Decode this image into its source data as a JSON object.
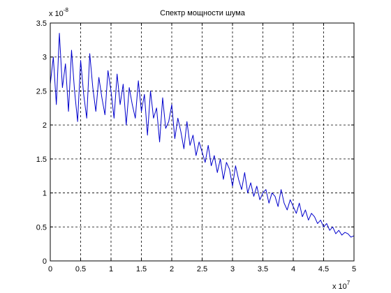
{
  "chart_data": {
    "type": "line",
    "title": "Спектр мощности шума",
    "xlabel": "",
    "ylabel": "",
    "x_multiplier": "x 10",
    "x_exponent": "7",
    "y_multiplier": "x 10",
    "y_exponent": "-8",
    "xlim": [
      0,
      5
    ],
    "ylim": [
      0,
      3.5
    ],
    "x_ticks": [
      "0",
      "0.5",
      "1",
      "1.5",
      "2",
      "2.5",
      "3",
      "3.5",
      "4",
      "4.5",
      "5"
    ],
    "y_ticks": [
      "0",
      "0.5",
      "1",
      "1.5",
      "2",
      "2.5",
      "3",
      "3.5"
    ],
    "grid": true,
    "line_color": "#0000cc",
    "series": [
      {
        "x": [
          0,
          0.05,
          0.1,
          0.15,
          0.2,
          0.25,
          0.3,
          0.35,
          0.4,
          0.45,
          0.5,
          0.55,
          0.6,
          0.65,
          0.7,
          0.75,
          0.8,
          0.85,
          0.9,
          0.95,
          1.0,
          1.05,
          1.1,
          1.15,
          1.2,
          1.25,
          1.3,
          1.35,
          1.4,
          1.45,
          1.5,
          1.55,
          1.6,
          1.65,
          1.7,
          1.75,
          1.8,
          1.85,
          1.9,
          1.95,
          2.0,
          2.05,
          2.1,
          2.15,
          2.2,
          2.25,
          2.3,
          2.35,
          2.4,
          2.45,
          2.5,
          2.55,
          2.6,
          2.65,
          2.7,
          2.75,
          2.8,
          2.85,
          2.9,
          2.95,
          3.0,
          3.05,
          3.1,
          3.15,
          3.2,
          3.25,
          3.3,
          3.35,
          3.4,
          3.45,
          3.5,
          3.55,
          3.6,
          3.65,
          3.7,
          3.75,
          3.8,
          3.85,
          3.9,
          3.95,
          4.0,
          4.05,
          4.1,
          4.15,
          4.2,
          4.25,
          4.3,
          4.35,
          4.4,
          4.45,
          4.5,
          4.55,
          4.6,
          4.65,
          4.7,
          4.75,
          4.8,
          4.85,
          4.9,
          4.95,
          5.0
        ],
        "y": [
          2.6,
          3.0,
          2.3,
          3.35,
          2.55,
          2.9,
          2.2,
          3.1,
          2.5,
          2.05,
          2.95,
          2.45,
          2.1,
          3.05,
          2.55,
          2.2,
          2.7,
          2.4,
          2.15,
          2.8,
          2.5,
          2.1,
          2.75,
          2.3,
          2.6,
          2.0,
          2.55,
          2.3,
          2.1,
          2.65,
          2.2,
          2.45,
          1.85,
          2.5,
          2.1,
          2.25,
          1.75,
          2.4,
          1.95,
          2.05,
          2.3,
          1.8,
          2.1,
          1.9,
          1.65,
          2.05,
          1.7,
          1.85,
          1.55,
          1.75,
          1.6,
          1.45,
          1.7,
          1.4,
          1.55,
          1.3,
          1.5,
          1.2,
          1.45,
          1.35,
          1.1,
          1.4,
          1.2,
          1.05,
          1.3,
          1.0,
          1.15,
          0.95,
          1.1,
          0.9,
          1.0,
          1.05,
          0.85,
          1.0,
          0.95,
          0.8,
          1.05,
          0.85,
          0.75,
          0.9,
          0.8,
          0.7,
          0.85,
          0.65,
          0.75,
          0.6,
          0.7,
          0.65,
          0.55,
          0.6,
          0.5,
          0.55,
          0.45,
          0.5,
          0.4,
          0.45,
          0.38,
          0.42,
          0.4,
          0.35,
          0.37
        ]
      }
    ]
  }
}
